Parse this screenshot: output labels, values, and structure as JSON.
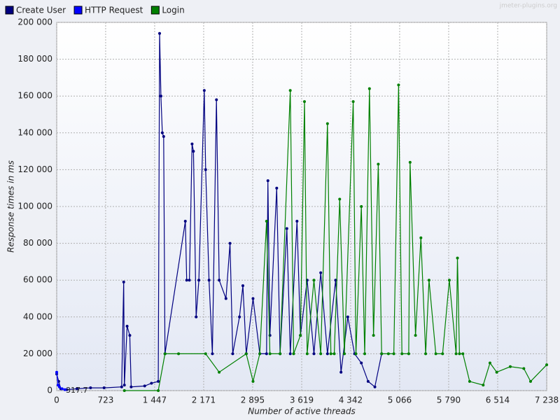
{
  "chart_data": {
    "type": "line",
    "watermark": "jmeter-plugins.org",
    "annotation": "317.7",
    "xlabel": "Number of active threads",
    "ylabel": "Response times in ms",
    "xlim": [
      0,
      7238
    ],
    "ylim": [
      0,
      200000
    ],
    "xticks": [
      0,
      {
        "value": 723,
        "label": "723"
      },
      {
        "value": 1447,
        "label": "1 447"
      },
      {
        "value": 2171,
        "label": "2 171"
      },
      {
        "value": 2895,
        "label": "2 895"
      },
      {
        "value": 3619,
        "label": "3 619"
      },
      {
        "value": 4342,
        "label": "4 342"
      },
      {
        "value": 5066,
        "label": "5 066"
      },
      {
        "value": 5790,
        "label": "5 790"
      },
      {
        "value": 6514,
        "label": "6 514"
      },
      {
        "value": 7238,
        "label": "7 238"
      }
    ],
    "yticks": [
      0,
      {
        "value": 20000,
        "label": "20 000"
      },
      {
        "value": 40000,
        "label": "40 000"
      },
      {
        "value": 60000,
        "label": "60 000"
      },
      {
        "value": 80000,
        "label": "80 000"
      },
      {
        "value": 100000,
        "label": "100 000"
      },
      {
        "value": 120000,
        "label": "120 000"
      },
      {
        "value": 140000,
        "label": "140 000"
      },
      {
        "value": 160000,
        "label": "160 000"
      },
      {
        "value": 180000,
        "label": "180 000"
      },
      {
        "value": 200000,
        "label": "200 000"
      }
    ],
    "grid": true,
    "legend": "top-left",
    "series": [
      {
        "name": "Create User",
        "color": "#000080",
        "x": [
          0,
          30,
          60,
          150,
          300,
          500,
          700,
          960,
          990,
          1000,
          1040,
          1080,
          1100,
          1300,
          1400,
          1500,
          1520,
          1540,
          1560,
          1580,
          1600,
          1900,
          1920,
          1960,
          2000,
          2020,
          2060,
          2100,
          2180,
          2200,
          2250,
          2300,
          2360,
          2400,
          2500,
          2560,
          2600,
          2700,
          2750,
          2800,
          2900,
          3000,
          3100,
          3120,
          3150,
          3250,
          3300,
          3400,
          3450,
          3550,
          3600,
          3700,
          3800,
          3900,
          4000,
          4120,
          4200,
          4300,
          4400,
          4500,
          4600,
          4700,
          4800
        ],
        "values": [
          9000,
          5000,
          1000,
          500,
          1000,
          1500,
          1500,
          2000,
          59000,
          3000,
          35000,
          30000,
          2000,
          2500,
          4000,
          5000,
          194000,
          160000,
          140000,
          138000,
          20000,
          92000,
          60000,
          60000,
          134000,
          130000,
          40000,
          60000,
          163000,
          120000,
          60000,
          20000,
          158000,
          60000,
          50000,
          80000,
          20000,
          40000,
          57000,
          20000,
          50000,
          20000,
          20000,
          114000,
          30000,
          110000,
          20000,
          88000,
          20000,
          92000,
          30000,
          60000,
          20000,
          64000,
          20000,
          60000,
          10000,
          40000,
          20000,
          15000,
          5000,
          2000,
          20000
        ]
      },
      {
        "name": "HTTP Request",
        "color": "#0000ff",
        "x": [
          0,
          20,
          40,
          80,
          120
        ],
        "values": [
          10000,
          3000,
          2000,
          1000,
          500
        ]
      },
      {
        "name": "Login",
        "color": "#008000",
        "x": [
          1000,
          1500,
          1600,
          1800,
          2200,
          2400,
          2800,
          2900,
          3000,
          3100,
          3150,
          3300,
          3450,
          3500,
          3600,
          3660,
          3700,
          3800,
          3900,
          4000,
          4050,
          4100,
          4180,
          4250,
          4380,
          4420,
          4500,
          4550,
          4620,
          4680,
          4750,
          4800,
          4900,
          4980,
          5050,
          5100,
          5200,
          5220,
          5300,
          5380,
          5450,
          5500,
          5600,
          5700,
          5800,
          5900,
          5920,
          5950,
          6000,
          6100,
          6300,
          6400,
          6500,
          6700,
          6900,
          7000,
          7238
        ],
        "values": [
          0,
          0,
          20000,
          20000,
          20000,
          10000,
          20000,
          5000,
          20000,
          92000,
          20000,
          20000,
          163000,
          20000,
          30000,
          157000,
          20000,
          60000,
          20000,
          145000,
          20000,
          20000,
          104000,
          20000,
          157000,
          20000,
          100000,
          20000,
          164000,
          30000,
          123000,
          20000,
          20000,
          20000,
          166000,
          20000,
          20000,
          124000,
          30000,
          83000,
          20000,
          60000,
          20000,
          20000,
          60000,
          20000,
          72000,
          20000,
          20000,
          5000,
          3000,
          15000,
          10000,
          13000,
          12000,
          5000,
          14000
        ]
      }
    ]
  }
}
